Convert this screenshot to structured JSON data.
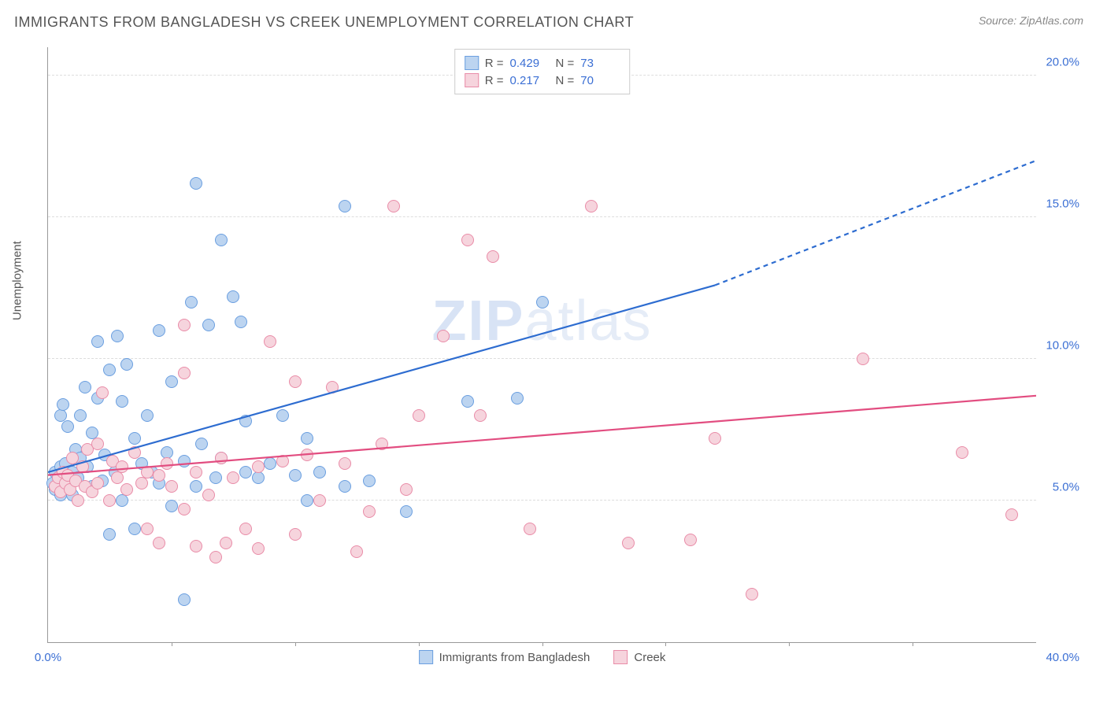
{
  "title": "IMMIGRANTS FROM BANGLADESH VS CREEK UNEMPLOYMENT CORRELATION CHART",
  "source": "Source: ZipAtlas.com",
  "watermark": {
    "bold": "ZIP",
    "light": "atlas"
  },
  "chart": {
    "type": "scatter",
    "background_color": "#ffffff",
    "grid_color": "#dddddd",
    "axis_color": "#999999",
    "ylabel": "Unemployment",
    "label_fontsize": 15,
    "tick_fontsize": 15,
    "tick_color": "#3b6fd4",
    "xlim": [
      0,
      40
    ],
    "ylim": [
      0,
      21
    ],
    "yticks": [
      5,
      10,
      15,
      20
    ],
    "ytick_labels": [
      "5.0%",
      "10.0%",
      "15.0%",
      "20.0%"
    ],
    "xticks_minor": [
      5,
      10,
      15,
      20,
      25,
      30,
      35
    ],
    "xtick_left": "0.0%",
    "xtick_right": "40.0%",
    "marker_radius": 8,
    "marker_stroke_width": 1.2,
    "series": [
      {
        "name": "Immigrants from Bangladesh",
        "fill_color": "#bcd4f0",
        "stroke_color": "#6b9fe0",
        "line_color": "#2d6cd0",
        "line_width": 2.2,
        "R": "0.429",
        "N": "73",
        "trend": {
          "x1": 0,
          "y1": 6.0,
          "x2_solid": 27,
          "y2_solid": 12.6,
          "x2": 40,
          "y2": 17.0
        },
        "points": [
          [
            0.2,
            5.6
          ],
          [
            0.3,
            6.0
          ],
          [
            0.3,
            5.4
          ],
          [
            0.4,
            5.8
          ],
          [
            0.5,
            6.2
          ],
          [
            0.5,
            5.2
          ],
          [
            0.5,
            8.0
          ],
          [
            0.6,
            5.6
          ],
          [
            0.6,
            8.4
          ],
          [
            0.7,
            5.5
          ],
          [
            0.7,
            6.3
          ],
          [
            0.8,
            5.7
          ],
          [
            0.8,
            7.6
          ],
          [
            0.9,
            5.9
          ],
          [
            1.0,
            6.0
          ],
          [
            1.0,
            5.2
          ],
          [
            1.1,
            6.8
          ],
          [
            1.2,
            5.8
          ],
          [
            1.3,
            6.5
          ],
          [
            1.3,
            8.0
          ],
          [
            1.5,
            9.0
          ],
          [
            1.6,
            6.2
          ],
          [
            1.8,
            5.5
          ],
          [
            1.8,
            7.4
          ],
          [
            2.0,
            8.6
          ],
          [
            2.0,
            10.6
          ],
          [
            2.2,
            5.7
          ],
          [
            2.3,
            6.6
          ],
          [
            2.5,
            9.6
          ],
          [
            2.5,
            3.8
          ],
          [
            2.7,
            6.0
          ],
          [
            2.8,
            10.8
          ],
          [
            3.0,
            8.5
          ],
          [
            3.0,
            5.0
          ],
          [
            3.2,
            9.8
          ],
          [
            3.5,
            7.2
          ],
          [
            3.5,
            4.0
          ],
          [
            3.8,
            6.3
          ],
          [
            4.0,
            8.0
          ],
          [
            4.2,
            6.0
          ],
          [
            4.5,
            5.6
          ],
          [
            4.5,
            11.0
          ],
          [
            4.8,
            6.7
          ],
          [
            5.0,
            4.8
          ],
          [
            5.0,
            9.2
          ],
          [
            5.5,
            6.4
          ],
          [
            5.8,
            12.0
          ],
          [
            6.0,
            5.5
          ],
          [
            6.0,
            16.2
          ],
          [
            6.2,
            7.0
          ],
          [
            6.5,
            11.2
          ],
          [
            6.8,
            5.8
          ],
          [
            7.0,
            14.2
          ],
          [
            7.0,
            6.5
          ],
          [
            7.5,
            12.2
          ],
          [
            7.8,
            11.3
          ],
          [
            8.0,
            6.0
          ],
          [
            8.0,
            7.8
          ],
          [
            8.5,
            5.8
          ],
          [
            9.0,
            6.3
          ],
          [
            9.5,
            8.0
          ],
          [
            10.0,
            5.9
          ],
          [
            10.5,
            7.2
          ],
          [
            11.0,
            6.0
          ],
          [
            12.0,
            5.5
          ],
          [
            12.0,
            15.4
          ],
          [
            13.0,
            5.7
          ],
          [
            14.5,
            4.6
          ],
          [
            17.0,
            8.5
          ],
          [
            19.0,
            8.6
          ],
          [
            20.0,
            12.0
          ],
          [
            5.5,
            1.5
          ],
          [
            10.5,
            5.0
          ]
        ]
      },
      {
        "name": "Creek",
        "fill_color": "#f6d4dd",
        "stroke_color": "#e98ca8",
        "line_color": "#e24d80",
        "line_width": 2.2,
        "R": "0.217",
        "N": "70",
        "trend": {
          "x1": 0,
          "y1": 5.9,
          "x2_solid": 40,
          "y2_solid": 8.7,
          "x2": 40,
          "y2": 8.7
        },
        "points": [
          [
            0.3,
            5.5
          ],
          [
            0.4,
            5.8
          ],
          [
            0.5,
            5.3
          ],
          [
            0.6,
            6.0
          ],
          [
            0.7,
            5.6
          ],
          [
            0.8,
            5.9
          ],
          [
            0.9,
            5.4
          ],
          [
            1.0,
            6.5
          ],
          [
            1.1,
            5.7
          ],
          [
            1.2,
            5.0
          ],
          [
            1.4,
            6.2
          ],
          [
            1.5,
            5.5
          ],
          [
            1.6,
            6.8
          ],
          [
            1.8,
            5.3
          ],
          [
            2.0,
            7.0
          ],
          [
            2.0,
            5.6
          ],
          [
            2.2,
            8.8
          ],
          [
            2.5,
            5.0
          ],
          [
            2.6,
            6.4
          ],
          [
            2.8,
            5.8
          ],
          [
            3.0,
            6.2
          ],
          [
            3.2,
            5.4
          ],
          [
            3.5,
            6.7
          ],
          [
            3.8,
            5.6
          ],
          [
            4.0,
            6.0
          ],
          [
            4.0,
            4.0
          ],
          [
            4.5,
            5.9
          ],
          [
            4.5,
            3.5
          ],
          [
            4.8,
            6.3
          ],
          [
            5.0,
            5.5
          ],
          [
            5.5,
            4.7
          ],
          [
            5.5,
            9.5
          ],
          [
            5.5,
            11.2
          ],
          [
            6.0,
            6.0
          ],
          [
            6.0,
            3.4
          ],
          [
            6.5,
            5.2
          ],
          [
            6.8,
            3.0
          ],
          [
            7.0,
            6.5
          ],
          [
            7.2,
            3.5
          ],
          [
            7.5,
            5.8
          ],
          [
            8.0,
            4.0
          ],
          [
            8.5,
            6.2
          ],
          [
            8.5,
            3.3
          ],
          [
            9.0,
            10.6
          ],
          [
            9.5,
            6.4
          ],
          [
            10.0,
            3.8
          ],
          [
            10.0,
            9.2
          ],
          [
            10.5,
            6.6
          ],
          [
            11.0,
            5.0
          ],
          [
            11.5,
            9.0
          ],
          [
            12.0,
            6.3
          ],
          [
            12.5,
            3.2
          ],
          [
            13.0,
            4.6
          ],
          [
            13.5,
            7.0
          ],
          [
            14.0,
            15.4
          ],
          [
            14.5,
            5.4
          ],
          [
            15.0,
            8.0
          ],
          [
            16.0,
            10.8
          ],
          [
            17.0,
            14.2
          ],
          [
            17.5,
            8.0
          ],
          [
            18.0,
            13.6
          ],
          [
            19.5,
            4.0
          ],
          [
            22.0,
            15.4
          ],
          [
            23.5,
            3.5
          ],
          [
            26.0,
            3.6
          ],
          [
            27.0,
            7.2
          ],
          [
            28.5,
            1.7
          ],
          [
            33.0,
            10.0
          ],
          [
            37.0,
            6.7
          ],
          [
            39.0,
            4.5
          ]
        ]
      }
    ],
    "legend_top": {
      "border_color": "#cccccc",
      "R_label": "R =",
      "N_label": "N ="
    },
    "legend_bottom": {
      "items": [
        "Immigrants from Bangladesh",
        "Creek"
      ]
    }
  }
}
